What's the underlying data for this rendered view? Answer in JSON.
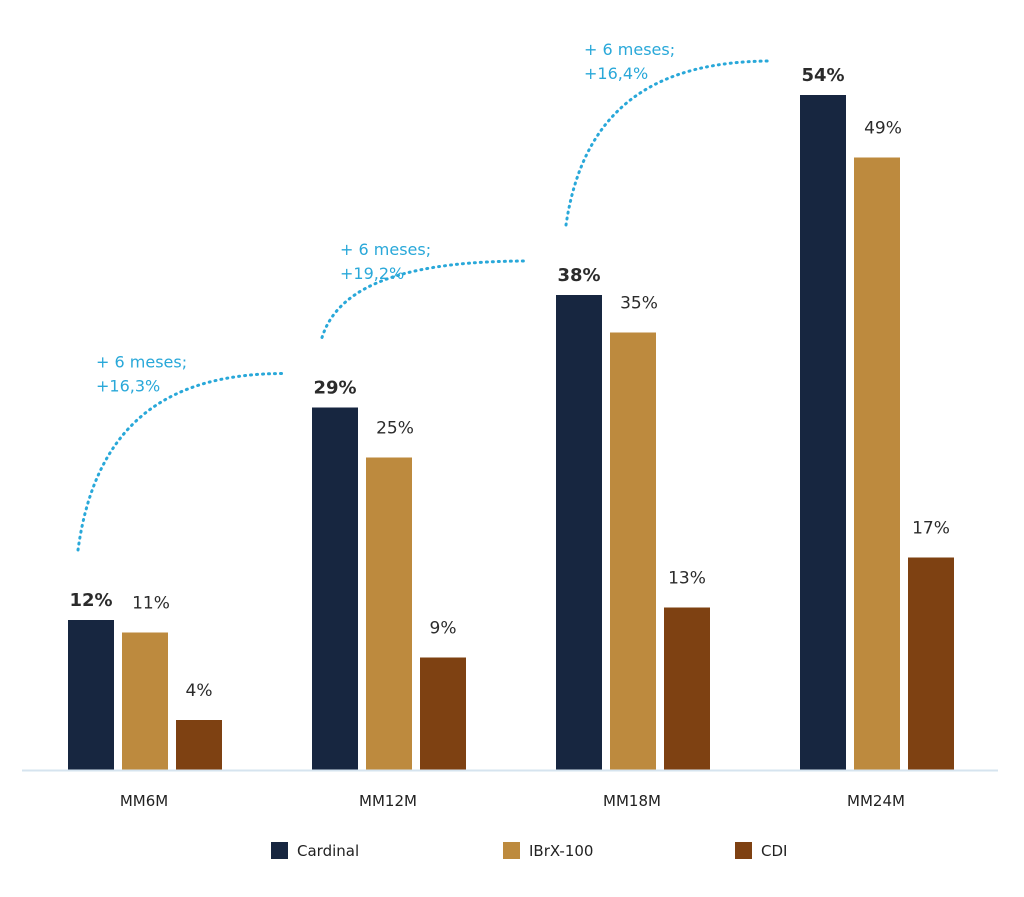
{
  "chart_data": {
    "type": "bar",
    "title": "",
    "xlabel": "",
    "ylabel": "",
    "ylim": [
      0,
      54
    ],
    "grid": false,
    "legend_position": "bottom-center",
    "categories": [
      "MM6M",
      "MM12M",
      "MM18M",
      "MM24M"
    ],
    "series": [
      {
        "name": "Cardinal",
        "color": "#172640",
        "values": [
          12,
          29,
          38,
          54
        ],
        "labels": [
          "12%",
          "29%",
          "38%",
          "54%"
        ],
        "bold": true
      },
      {
        "name": "IBrX-100",
        "color": "#bd8a3e",
        "values": [
          11,
          25,
          35,
          49
        ],
        "labels": [
          "11%",
          "25%",
          "35%",
          "49%"
        ],
        "bold": false
      },
      {
        "name": "CDI",
        "color": "#7e4112",
        "values": [
          4,
          9,
          13,
          17
        ],
        "labels": [
          "4%",
          "9%",
          "13%",
          "17%"
        ],
        "bold": false
      }
    ],
    "annotations": [
      {
        "line1": "+ 6 meses;",
        "line2": "+16,3%",
        "from_category": 0,
        "to_category": 1
      },
      {
        "line1": "+ 6 meses;",
        "line2": "+19,2%",
        "from_category": 1,
        "to_category": 2
      },
      {
        "line1": "+ 6 meses;",
        "line2": "+16,4%",
        "from_category": 2,
        "to_category": 3
      }
    ],
    "annotation_color": "#29a8d9",
    "axis_color": "#d6e4ef"
  }
}
